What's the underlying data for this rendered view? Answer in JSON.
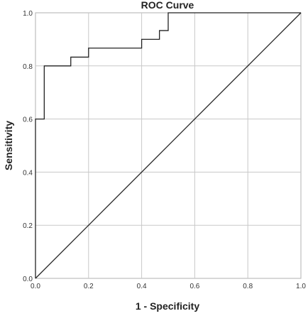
{
  "chart_data": {
    "type": "line",
    "title": "ROC Curve",
    "xlabel": "1 - Specificity",
    "ylabel": "Sensitivity",
    "xlim": [
      0.0,
      1.0
    ],
    "ylim": [
      0.0,
      1.0
    ],
    "x_ticks": [
      0.0,
      0.2,
      0.4,
      0.6,
      0.8,
      1.0
    ],
    "y_ticks": [
      0.0,
      0.2,
      0.4,
      0.6,
      0.8,
      1.0
    ],
    "x_tick_labels": [
      "0.0",
      "0.2",
      "0.4",
      "0.6",
      "0.8",
      "1.0"
    ],
    "y_tick_labels": [
      "0.0",
      "0.2",
      "0.4",
      "0.6",
      "0.8",
      "1.0"
    ],
    "grid": true,
    "legend": "none",
    "series": [
      {
        "x": [
          0.0,
          0.0,
          0.033,
          0.033,
          0.133,
          0.133,
          0.2,
          0.2,
          0.4,
          0.4,
          0.467,
          0.467,
          0.5,
          0.5,
          1.0
        ],
        "y": [
          0.0,
          0.6,
          0.6,
          0.8,
          0.8,
          0.833,
          0.833,
          0.867,
          0.867,
          0.9,
          0.9,
          0.933,
          0.933,
          1.0,
          1.0
        ],
        "color": "#222222"
      },
      {
        "x": [
          0.0,
          1.0
        ],
        "y": [
          0.0,
          1.0
        ],
        "color": "#222222"
      }
    ],
    "colors": {
      "grid": "#c8c8c8",
      "frame": "#b0b0b0",
      "line": "#222222"
    }
  }
}
